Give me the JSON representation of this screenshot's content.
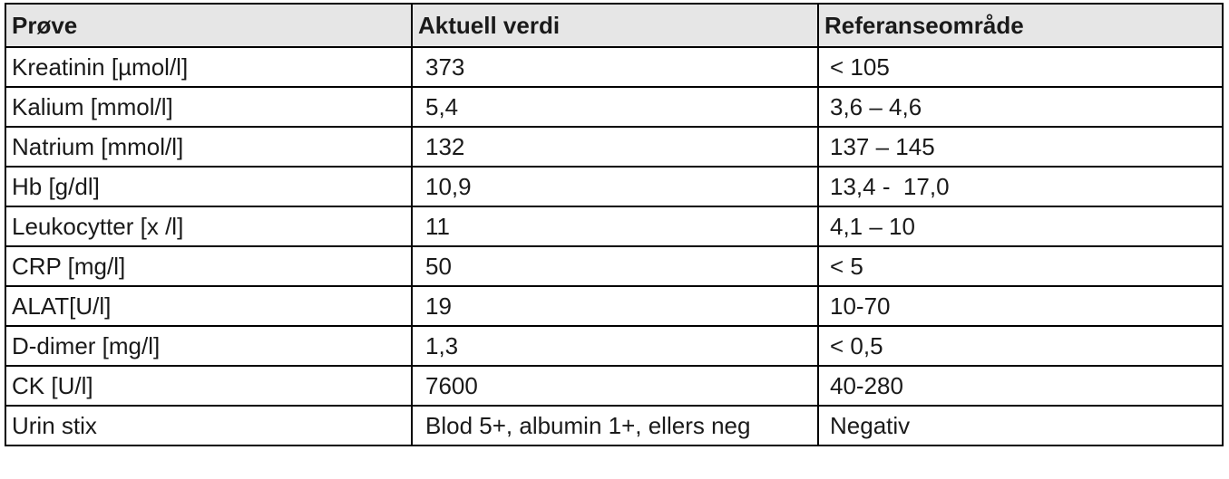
{
  "table": {
    "headers": [
      "Prøve",
      "Aktuell verdi",
      "Referanseområde"
    ],
    "rows": [
      [
        "Kreatinin [µmol/l]",
        "373",
        "< 105"
      ],
      [
        "Kalium [mmol/l]",
        "5,4",
        "3,6 – 4,6"
      ],
      [
        "Natrium [mmol/l]",
        "132",
        "137 – 145"
      ],
      [
        "Hb [g/dl]",
        "10,9",
        "13,4 -  17,0"
      ],
      [
        "Leukocytter [x /l]",
        "11",
        "4,1 – 10"
      ],
      [
        "CRP [mg/l]",
        "50",
        "< 5"
      ],
      [
        "ALAT[U/l]",
        "19",
        "10-70"
      ],
      [
        "D-dimer [mg/l]",
        "1,3",
        "< 0,5"
      ],
      [
        "CK [U/l]",
        "7600",
        "40-280"
      ],
      [
        "Urin stix",
        "Blod 5+, albumin 1+, ellers neg",
        "Negativ"
      ]
    ]
  }
}
